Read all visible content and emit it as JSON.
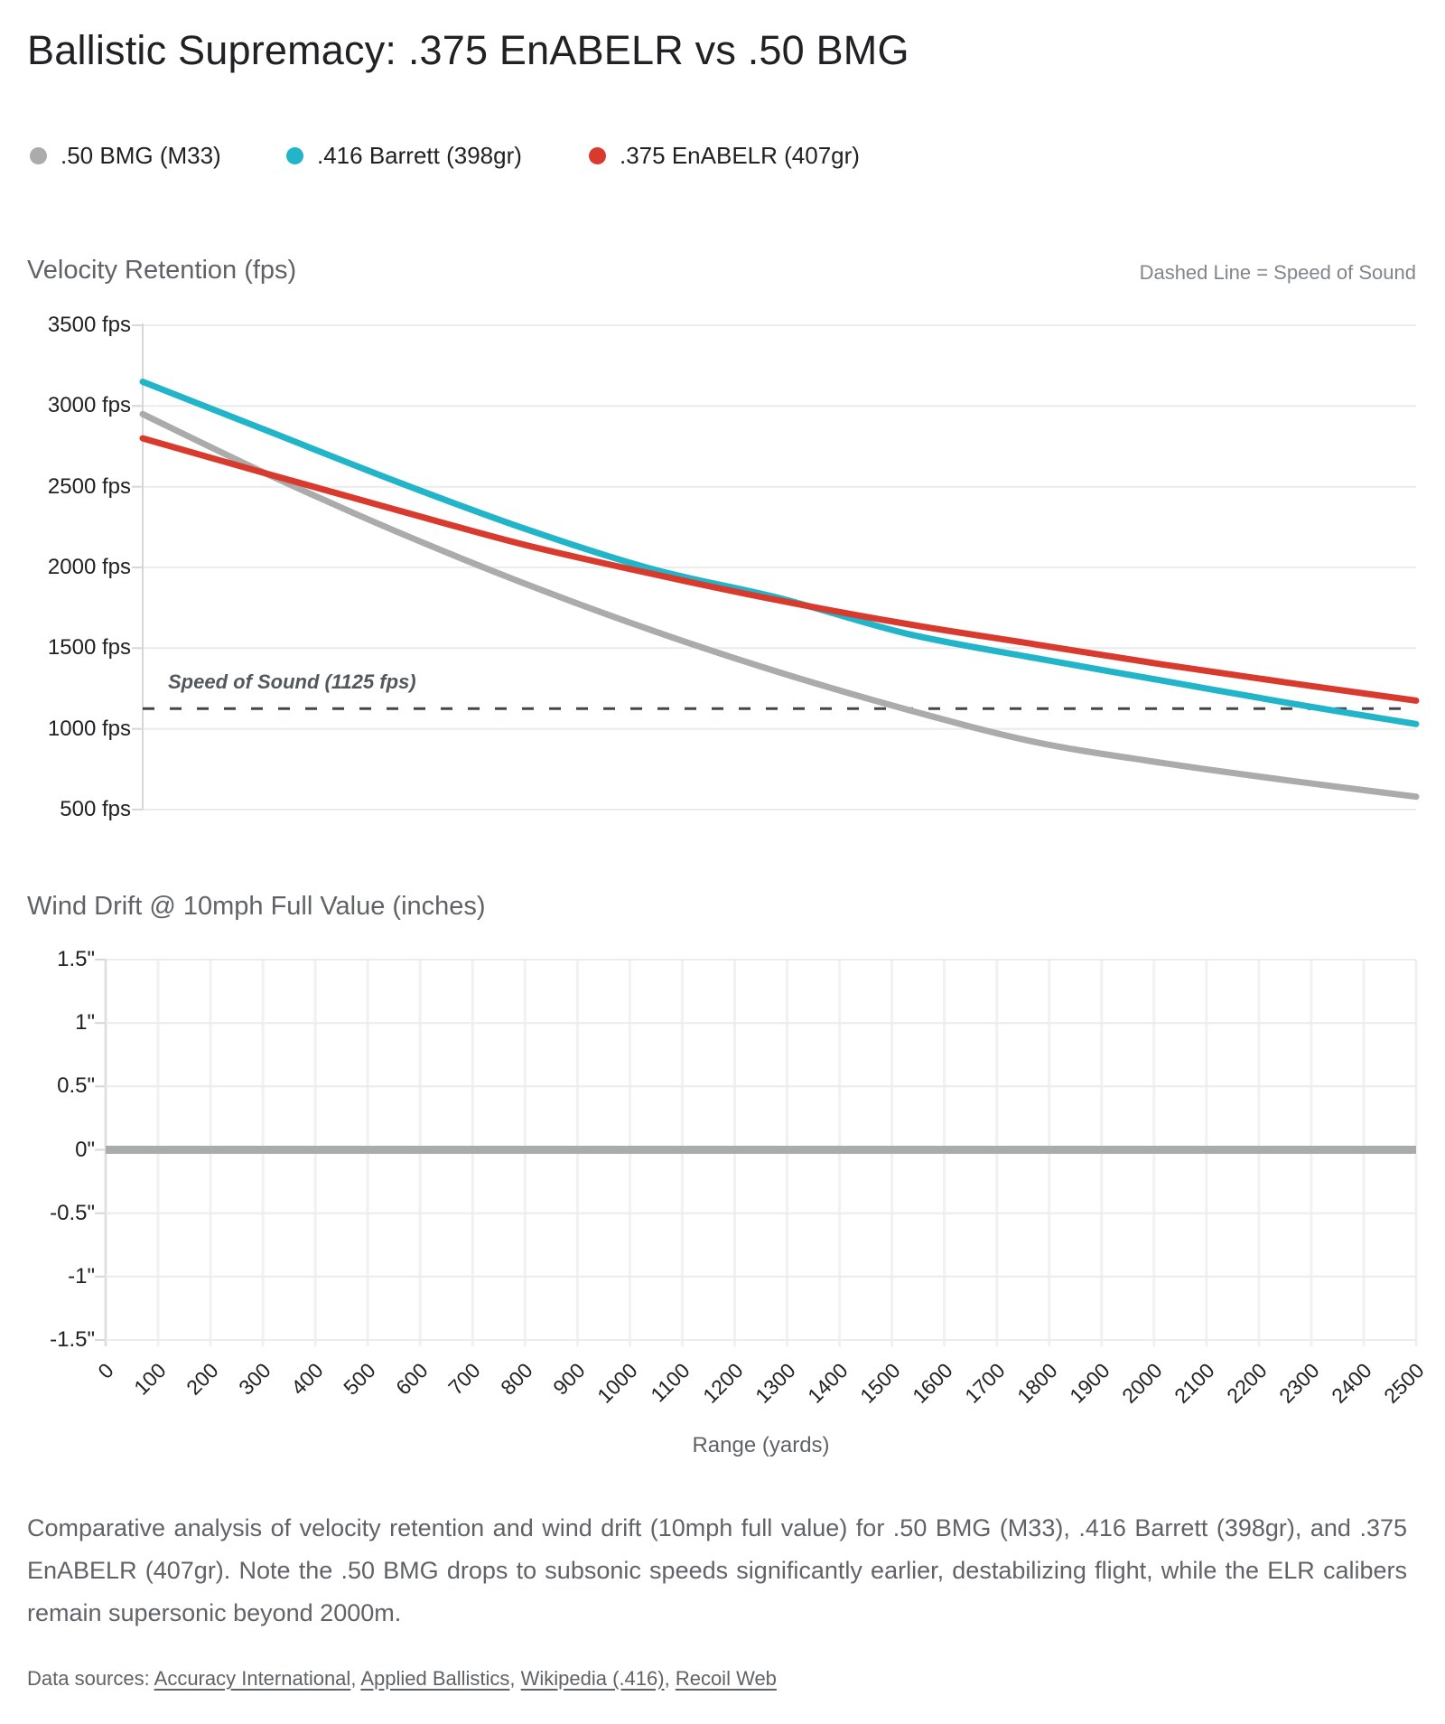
{
  "page": {
    "title": "Ballistic Supremacy: .375 EnABELR vs .50 BMG",
    "caption": "Comparative analysis of velocity retention and wind drift (10mph full value) for .50 BMG (M33), .416 Barrett (398gr), and .375 EnABELR (407gr). Note the .50 BMG drops to subsonic speeds significantly earlier, destabilizing flight, while the ELR calibers remain supersonic beyond 2000m.",
    "sources_prefix": "Data sources:",
    "sources": [
      {
        "label": "Accuracy International"
      },
      {
        "label": "Applied Ballistics"
      },
      {
        "label": "Wikipedia (.416)"
      },
      {
        "label": "Recoil Web"
      }
    ]
  },
  "legend": {
    "items": [
      {
        "label": ".50 BMG (M33)",
        "color": "#ababab"
      },
      {
        "label": ".416 Barrett (398gr)",
        "color": "#22b5c9"
      },
      {
        "label": ".375 EnABELR (407gr)",
        "color": "#d93a2e"
      }
    ]
  },
  "chart_data": [
    {
      "type": "line",
      "title": "Velocity Retention (fps)",
      "note": "Dashed Line = Speed of Sound",
      "xlabel": "Range (yards)",
      "xlim": [
        0,
        2500
      ],
      "ylim": [
        500,
        3500
      ],
      "grid": "horizontal-only",
      "x": [
        0,
        250,
        500,
        750,
        1000,
        1250,
        1500,
        1750,
        2000,
        2250,
        2500
      ],
      "yticks": [
        {
          "value": 3500,
          "label": "3500 fps"
        },
        {
          "value": 3000,
          "label": "3000 fps"
        },
        {
          "value": 2500,
          "label": "2500 fps"
        },
        {
          "value": 2000,
          "label": "2000 fps"
        },
        {
          "value": 1500,
          "label": "1500 fps"
        },
        {
          "value": 1000,
          "label": "1000 fps"
        },
        {
          "value": 500,
          "label": "500 fps"
        }
      ],
      "series": [
        {
          "name": ".50 BMG (M33)",
          "color": "#ababab",
          "values": [
            2950,
            2570,
            2220,
            1900,
            1610,
            1350,
            1120,
            920,
            790,
            680,
            580
          ]
        },
        {
          "name": ".416 Barrett (398gr)",
          "color": "#22b5c9",
          "values": [
            3150,
            2840,
            2530,
            2240,
            1990,
            1810,
            1590,
            1440,
            1300,
            1160,
            1030
          ]
        },
        {
          "name": ".375 EnABELR (407gr)",
          "color": "#d93a2e",
          "values": [
            2800,
            2575,
            2355,
            2140,
            1960,
            1795,
            1650,
            1525,
            1400,
            1285,
            1175
          ]
        }
      ],
      "reference_line": {
        "label": "Speed of Sound (1125 fps)",
        "value": 1125,
        "style": "dashed",
        "color": "#42474c"
      }
    },
    {
      "type": "line",
      "title": "Wind Drift @ 10mph Full Value (inches)",
      "xlabel": "Range (yards)",
      "xlim": [
        0,
        2500
      ],
      "ylim": [
        -1.5,
        1.5
      ],
      "grid": "both",
      "x": [
        0,
        250,
        500,
        750,
        1000,
        1250,
        1500,
        1750,
        2000,
        2250,
        2500
      ],
      "yticks": [
        {
          "value": 1.5,
          "label": "1.5\""
        },
        {
          "value": 1,
          "label": "1\""
        },
        {
          "value": 0.5,
          "label": "0.5\""
        },
        {
          "value": 0,
          "label": "0\""
        },
        {
          "value": -0.5,
          "label": "-0.5\""
        },
        {
          "value": -1,
          "label": "-1\""
        },
        {
          "value": -1.5,
          "label": "-1.5\""
        }
      ],
      "xticks": [
        {
          "value": 0,
          "label": "0"
        },
        {
          "value": 100,
          "label": "100"
        },
        {
          "value": 200,
          "label": "200"
        },
        {
          "value": 300,
          "label": "300"
        },
        {
          "value": 400,
          "label": "400"
        },
        {
          "value": 500,
          "label": "500"
        },
        {
          "value": 600,
          "label": "600"
        },
        {
          "value": 700,
          "label": "700"
        },
        {
          "value": 800,
          "label": "800"
        },
        {
          "value": 900,
          "label": "900"
        },
        {
          "value": 1000,
          "label": "1000"
        },
        {
          "value": 1100,
          "label": "1100"
        },
        {
          "value": 1200,
          "label": "1200"
        },
        {
          "value": 1300,
          "label": "1300"
        },
        {
          "value": 1400,
          "label": "1400"
        },
        {
          "value": 1500,
          "label": "1500"
        },
        {
          "value": 1600,
          "label": "1600"
        },
        {
          "value": 1700,
          "label": "1700"
        },
        {
          "value": 1800,
          "label": "1800"
        },
        {
          "value": 1900,
          "label": "1900"
        },
        {
          "value": 2000,
          "label": "2000"
        },
        {
          "value": 2100,
          "label": "2100"
        },
        {
          "value": 2200,
          "label": "2200"
        },
        {
          "value": 2300,
          "label": "2300"
        },
        {
          "value": 2400,
          "label": "2400"
        },
        {
          "value": 2500,
          "label": "2500"
        }
      ],
      "series": [
        {
          "name": ".50 BMG (M33)",
          "color": "#ababab",
          "values": [
            0,
            0,
            0,
            0,
            0,
            0,
            0,
            0,
            0,
            0,
            0
          ]
        },
        {
          "name": ".416 Barrett (398gr)",
          "color": "#22b5c9",
          "values": [
            0,
            0,
            0,
            0,
            0,
            0,
            0,
            0,
            0,
            0,
            0
          ]
        },
        {
          "name": ".375 EnABELR (407gr)",
          "color": "#d93a2e",
          "values": [
            0,
            0,
            0,
            0,
            0,
            0,
            0,
            0,
            0,
            0,
            0
          ]
        }
      ],
      "zero_line_color": "#a8adab"
    }
  ]
}
